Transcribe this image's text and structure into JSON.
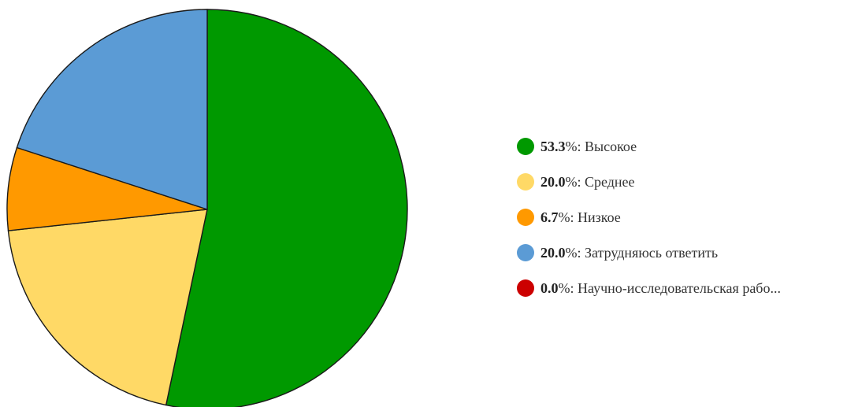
{
  "chart_data": {
    "type": "pie",
    "title": "",
    "slices": [
      {
        "label": "Высокое",
        "value": 53.3,
        "value_label": "53.3",
        "color": "#009900"
      },
      {
        "label": "Среднее",
        "value": 20.0,
        "value_label": "20.0",
        "color": "#FFD966"
      },
      {
        "label": "Низкое",
        "value": 6.7,
        "value_label": "6.7",
        "color": "#FF9900"
      },
      {
        "label": "Затрудняюсь ответить",
        "value": 20.0,
        "value_label": "20.0",
        "color": "#5B9BD5"
      },
      {
        "label": "Научно-исследовательская рабо...",
        "value": 0.0,
        "value_label": "0.0",
        "color": "#CC0000"
      }
    ],
    "start_angle_deg": 0,
    "direction": "clockwise",
    "legend_position": "right",
    "percent_sign": "%",
    "separator": ": "
  }
}
